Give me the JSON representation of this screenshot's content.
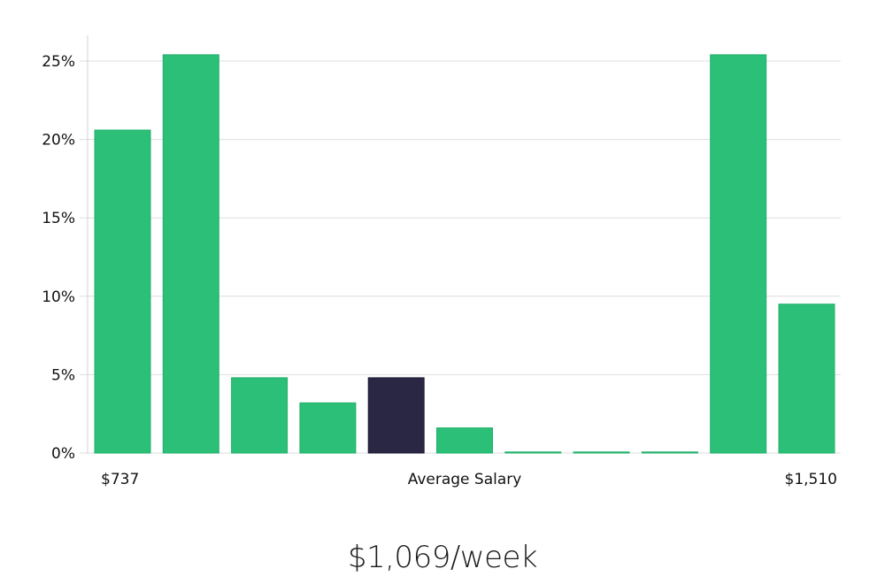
{
  "chart_data": {
    "type": "bar",
    "ylim": [
      0,
      26.5
    ],
    "yticks": [
      0,
      5,
      10,
      15,
      20,
      25
    ],
    "ytick_labels": [
      "0%",
      "5%",
      "10%",
      "15%",
      "20%",
      "25%"
    ],
    "grid": true,
    "values": [
      20.6,
      25.4,
      4.8,
      3.2,
      4.8,
      1.6,
      0,
      0,
      0,
      25.4,
      9.5
    ],
    "highlight_index": 4,
    "bar_color": "#2bbf77",
    "highlight_color": "#2a2744",
    "x_labels": {
      "left": "$737",
      "center": "Average Salary",
      "right": "$1,510"
    }
  },
  "summary": {
    "value": "$1,069/week"
  }
}
